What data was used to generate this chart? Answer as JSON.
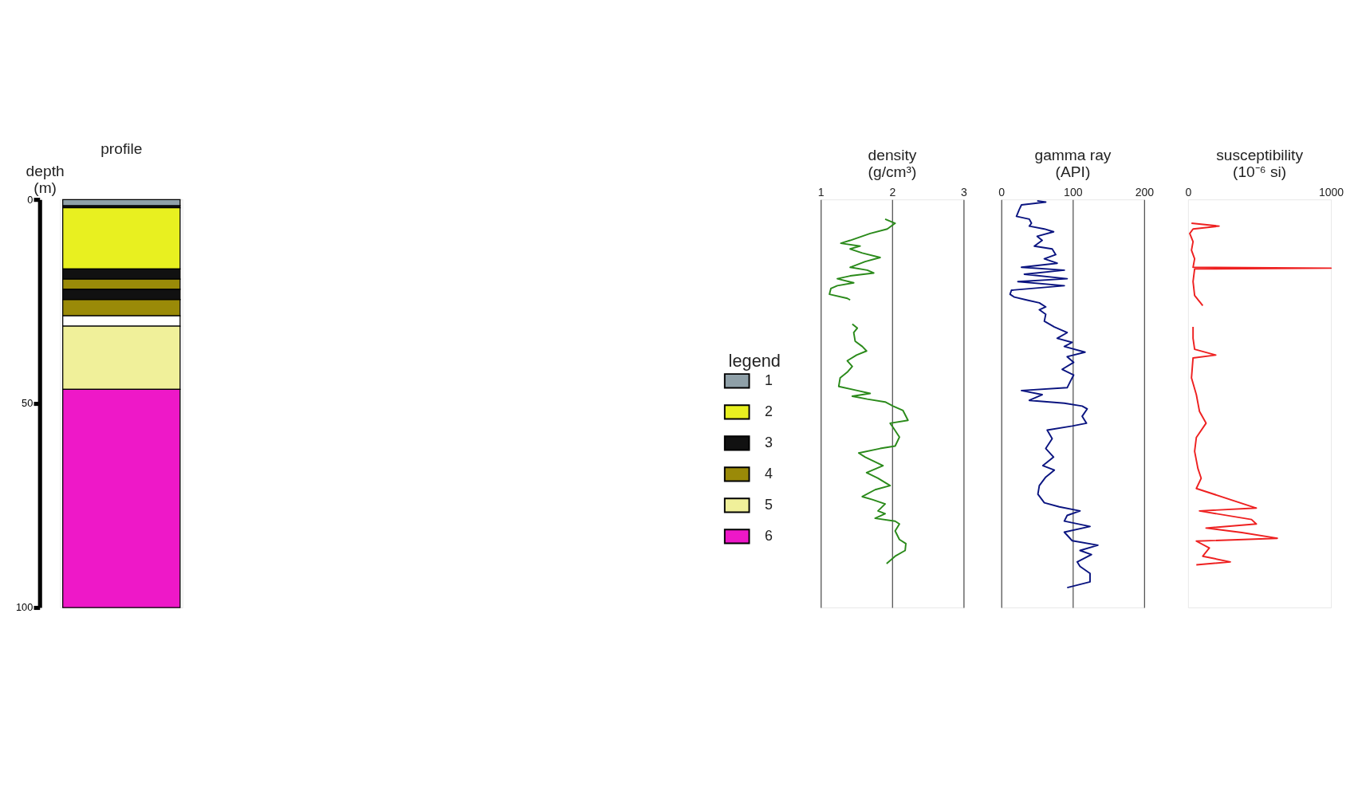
{
  "chart_data": [
    {
      "type": "bar",
      "stacked": true,
      "title": "profile",
      "ylabel": "depth (m)",
      "categories": [
        null
      ],
      "ylim": [
        100,
        0
      ],
      "yticks": [
        0,
        50,
        100
      ],
      "tick_labels": "y",
      "legend": "right",
      "legend_title": "legend",
      "series": [
        {
          "name": "1",
          "color": "#8fa0a8",
          "values": [
            1.5
          ]
        },
        {
          "name": "3",
          "color": "#111111",
          "values": [
            0.5
          ]
        },
        {
          "name": "2",
          "color": "#e8f020",
          "values": [
            15
          ]
        },
        {
          "color": "#111111",
          "values": [
            2.5
          ]
        },
        {
          "name": "4",
          "color": "#9a8a08",
          "values": [
            2.5
          ]
        },
        {
          "color": "#111111",
          "values": [
            2.5
          ]
        },
        {
          "color": "#9a8a08",
          "values": [
            4
          ]
        },
        {
          "color": "#ffffff",
          "values": [
            2.5
          ]
        },
        {
          "name": "5",
          "color": "#f0f09a",
          "values": [
            15.5
          ]
        },
        {
          "name": "6",
          "color": "#ee18c8",
          "values": [
            53.5
          ]
        }
      ]
    },
    {
      "type": "line",
      "title": "density (g/cm³)",
      "xlim": [
        1,
        3
      ],
      "xticks": [
        1,
        2,
        3
      ],
      "ylim": [
        100,
        0
      ],
      "tick_labels": "x",
      "grid": "x",
      "series": [
        {
          "color": "#2a8a1a",
          "x": [
            1.9,
            2.04,
            1.93,
            1.69,
            1.41,
            1.28,
            1.55,
            1.41,
            1.58,
            1.83,
            1.62,
            1.41,
            1.65,
            1.74,
            1.41,
            1.23,
            1.46,
            1.23,
            1.14,
            1.12,
            1.37,
            1.41,
            null,
            1.44,
            1.51,
            1.46,
            1.48,
            1.58,
            1.64,
            1.5,
            1.37,
            1.44,
            1.37,
            1.27,
            1.25,
            1.51,
            1.69,
            1.44,
            1.65,
            1.9,
            2.01,
            2.15,
            2.22,
            1.97,
            2.01,
            2.1,
            2.04,
            1.83,
            1.53,
            1.62,
            1.87,
            1.64,
            1.8,
            1.97,
            1.76,
            1.58,
            1.72,
            1.9,
            1.8,
            1.9,
            1.76,
            2.04,
            2.1,
            2.04,
            2.1,
            2.19,
            2.18,
            2.04,
            1.92
          ],
          "values": [
            4.8,
            5.8,
            7.2,
            8.3,
            10.0,
            10.7,
            11.4,
            12.1,
            13.1,
            14.2,
            15.2,
            16.6,
            17.3,
            18.0,
            18.7,
            19.4,
            20.4,
            21.1,
            21.8,
            23.2,
            24.2,
            24.6,
            null,
            30.5,
            31.5,
            32.6,
            34.7,
            36.0,
            37.1,
            38.1,
            39.5,
            40.9,
            42.3,
            43.7,
            45.8,
            46.8,
            47.5,
            48.2,
            48.9,
            49.6,
            50.6,
            51.7,
            54.1,
            54.8,
            55.8,
            58.2,
            60.4,
            61.0,
            62.1,
            63.1,
            65.2,
            66.9,
            68.3,
            70.1,
            71.1,
            72.8,
            73.5,
            74.6,
            76.3,
            77.0,
            78.1,
            78.8,
            79.5,
            81.2,
            83.3,
            84.3,
            86.0,
            87.4,
            89.2
          ]
        }
      ]
    },
    {
      "type": "line",
      "title": "gamma ray (API)",
      "xlim": [
        0,
        200
      ],
      "xticks": [
        0,
        100,
        200
      ],
      "ylim": [
        100,
        0
      ],
      "tick_labels": "x",
      "grid": "x",
      "series": [
        {
          "color": "#0a1480",
          "x": [
            50,
            62,
            28,
            25,
            21,
            39,
            42,
            39,
            60,
            73,
            50,
            57,
            46,
            71,
            76,
            60,
            78,
            28,
            88,
            32,
            92,
            23,
            88,
            14,
            12,
            18,
            35,
            53,
            62,
            53,
            62,
            60,
            74,
            92,
            78,
            99,
            88,
            117,
            92,
            101,
            85,
            101,
            96,
            92,
            28,
            57,
            39,
            88,
            113,
            120,
            113,
            119,
            99,
            64,
            71,
            62,
            73,
            58,
            74,
            62,
            53,
            51,
            60,
            81,
            110,
            92,
            88,
            124,
            88,
            99,
            135,
            110,
            126,
            106,
            110,
            124,
            124,
            92
          ],
          "values": [
            0.3,
            0.6,
            1.3,
            2.4,
            4.1,
            4.8,
            5.8,
            6.5,
            7.2,
            7.9,
            9.0,
            10.0,
            11.4,
            12.1,
            13.5,
            14.5,
            15.6,
            16.6,
            17.3,
            18.3,
            19.4,
            20.1,
            21.1,
            22.2,
            23.2,
            23.9,
            24.6,
            25.3,
            26.3,
            27.0,
            28.1,
            29.8,
            31.2,
            32.6,
            34.0,
            35.0,
            36.0,
            37.4,
            38.5,
            39.9,
            41.6,
            43.0,
            44.7,
            46.1,
            46.8,
            47.8,
            49.2,
            49.9,
            50.6,
            51.3,
            53.1,
            54.8,
            55.5,
            56.5,
            58.6,
            61.0,
            63.1,
            65.2,
            66.3,
            68.0,
            70.1,
            72.2,
            74.3,
            75.3,
            76.3,
            77.4,
            78.8,
            80.1,
            81.5,
            83.6,
            84.7,
            86.0,
            87.0,
            88.8,
            89.9,
            91.6,
            93.7,
            95.1
          ]
        }
      ]
    },
    {
      "type": "line",
      "title": "susceptibility (10⁻⁶ si)",
      "xlim": [
        0,
        1000
      ],
      "xticks": [
        0,
        1000
      ],
      "ylim": [
        100,
        0
      ],
      "tick_labels": "x",
      "series": [
        {
          "color": "#ee2020",
          "x": [
            23,
            216,
            34,
            11,
            34,
            23,
            45,
            34,
            1000,
            45,
            34,
            45,
            102,
            null,
            34,
            34,
            45,
            193,
            34,
            23,
            57,
            79,
            125,
            57,
            45,
            68,
            91,
            57,
            477,
            79,
            443,
            477,
            125,
            375,
            624,
            57,
            148,
            102,
            295,
            57
          ],
          "values": [
            5.8,
            6.5,
            7.2,
            8.3,
            10.3,
            12.4,
            14.5,
            16.6,
            16.8,
            17.0,
            20.1,
            23.5,
            26.0,
            null,
            31.2,
            34.0,
            36.7,
            38.1,
            38.8,
            43.7,
            47.8,
            51.9,
            54.8,
            58.3,
            61.7,
            65.9,
            68.3,
            70.8,
            75.6,
            76.3,
            78.4,
            79.5,
            80.5,
            81.6,
            83.0,
            83.7,
            85.4,
            87.4,
            88.8,
            89.5
          ]
        }
      ]
    }
  ]
}
